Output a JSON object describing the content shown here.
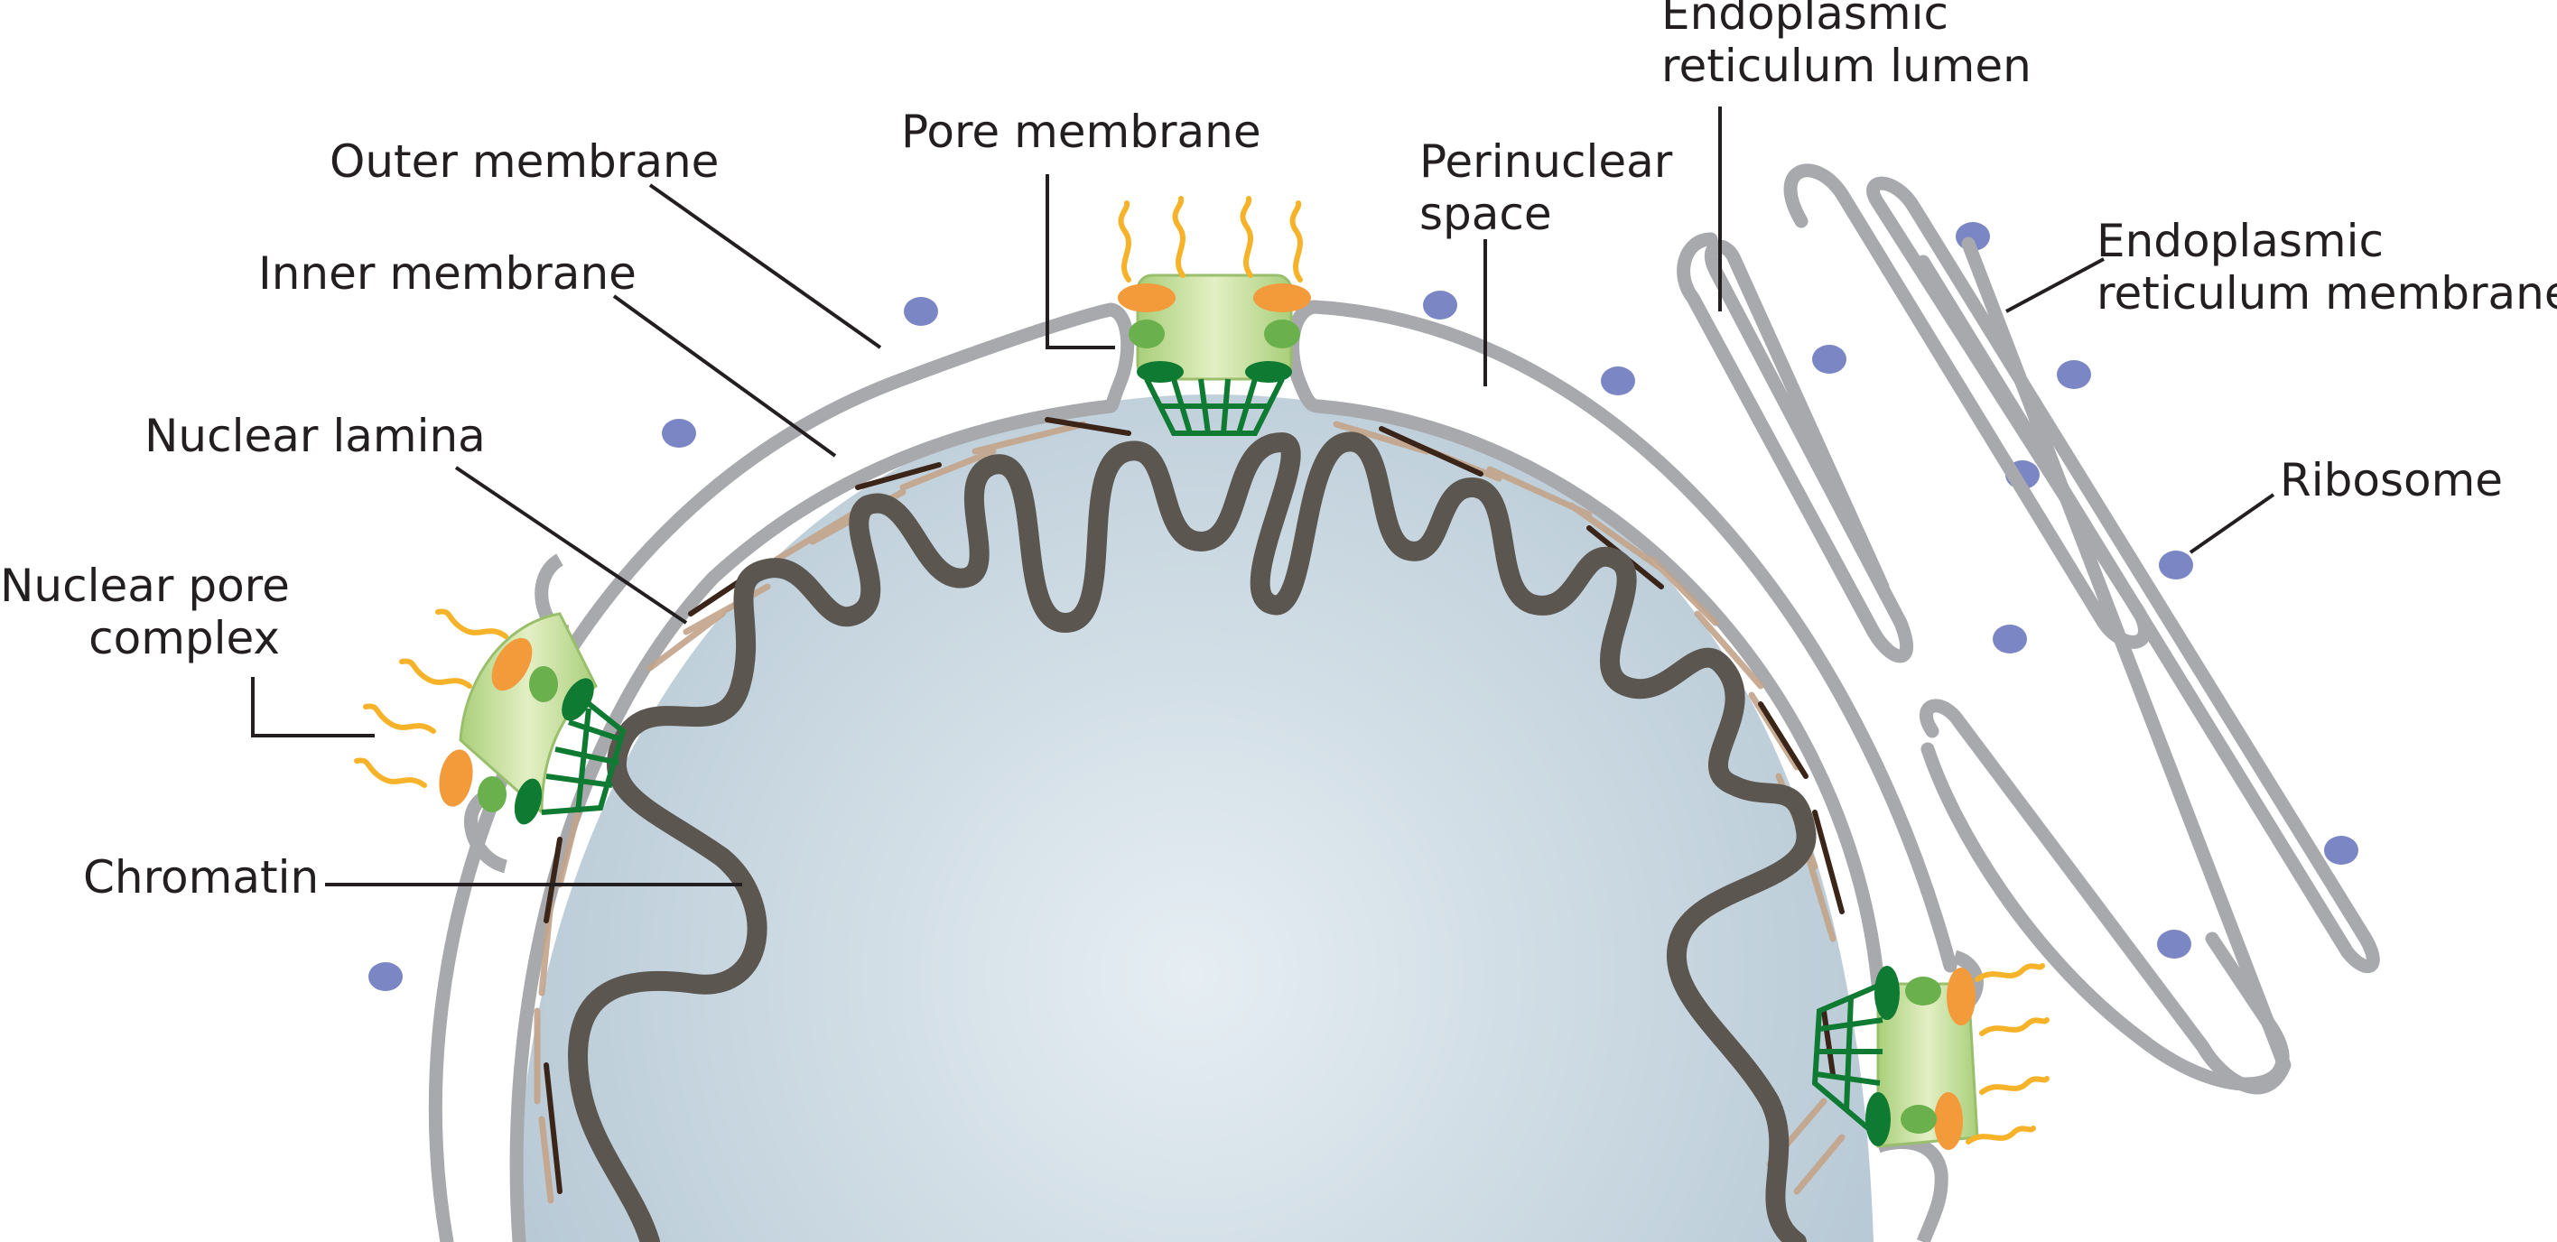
{
  "labels": {
    "outer_membrane": "Outer membrane",
    "pore_membrane": "Pore membrane",
    "perinuclear_space": [
      "Perinuclear",
      "space"
    ],
    "er_lumen": [
      "Endoplasmic",
      "reticulum lumen"
    ],
    "er_membrane": [
      "Endoplasmic",
      "reticulum membrane"
    ],
    "inner_membrane": "Inner membrane",
    "nuclear_lamina": "Nuclear lamina",
    "ribosome": "Ribosome",
    "nuclear_pore_complex": [
      "Nuclear pore",
      "complex"
    ],
    "chromatin": "Chromatin"
  },
  "colors": {
    "membrane": "#a7a9ac",
    "nucleoplasm_center": "#e6eef3",
    "nucleoplasm_edge": "#b4c7d3",
    "chromatin": "#5b5750",
    "lamina_dark": "#3b2418",
    "lamina_light": "#c4a48a",
    "ribosome": "#7b86c5",
    "pore_light_green": "#c7dc9a",
    "pore_green": "#6ab04c",
    "basket_green": "#0f7a32",
    "pore_orange": "#f39a3b",
    "filament_yellow": "#f6b32a",
    "leader_line": "#231f20"
  }
}
